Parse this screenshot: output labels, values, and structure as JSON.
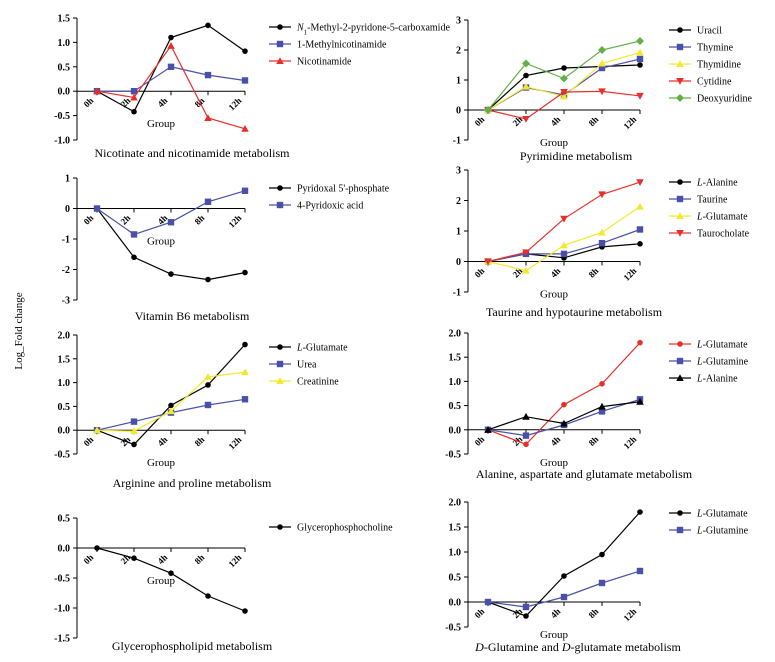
{
  "figure": {
    "ylabel": "Log_Fold change"
  },
  "chart_data": [
    {
      "type": "line",
      "title": "Nicotinate and nicotinamide metabolism",
      "xlabel": "Group",
      "ylabel": "Log_Fold change",
      "categories": [
        "0h",
        "2h",
        "4h",
        "8h",
        "12h"
      ],
      "ylim": [
        -1.0,
        1.5
      ],
      "yticks": [
        "-1.0",
        "-0.5",
        "0.0",
        "0.5",
        "1.0",
        "1.5"
      ],
      "series": [
        {
          "name": "N1-Methyl-2-pyridone-5-carboxamide",
          "color": "#000000",
          "marker": "circle",
          "values": [
            0,
            -0.42,
            1.1,
            1.35,
            0.82
          ]
        },
        {
          "name": "1-Methylnicotinamide",
          "color": "#4a50a8",
          "marker": "square",
          "values": [
            0,
            0,
            0.5,
            0.33,
            0.22
          ]
        },
        {
          "name": "Nicotinamide",
          "color": "#e8302a",
          "marker": "triangle-up",
          "values": [
            0,
            -0.13,
            0.93,
            -0.55,
            -0.77
          ]
        }
      ]
    },
    {
      "type": "line",
      "title": "Pyrimidine metabolism",
      "xlabel": "Group",
      "ylabel": "Log_Fold change",
      "categories": [
        "0h",
        "2h",
        "4h",
        "8h",
        "12h"
      ],
      "ylim": [
        -1,
        3
      ],
      "yticks": [
        "-1",
        "0",
        "1",
        "2",
        "3"
      ],
      "series": [
        {
          "name": "Uracil",
          "color": "#000000",
          "marker": "circle",
          "values": [
            0,
            1.15,
            1.4,
            1.45,
            1.5
          ]
        },
        {
          "name": "Thymine",
          "color": "#4a50a8",
          "marker": "square",
          "values": [
            0,
            0.75,
            0.5,
            1.4,
            1.7
          ]
        },
        {
          "name": "Thymidine",
          "color": "#f2e92a",
          "marker": "triangle-up",
          "values": [
            0,
            0.78,
            0.45,
            1.55,
            1.92
          ]
        },
        {
          "name": "Cytidine",
          "color": "#e8302a",
          "marker": "triangle-down",
          "values": [
            0,
            -0.3,
            0.6,
            0.62,
            0.47
          ]
        },
        {
          "name": "Deoxyuridine",
          "color": "#62b046",
          "marker": "diamond",
          "values": [
            0,
            1.55,
            1.05,
            2.0,
            2.3
          ]
        }
      ]
    },
    {
      "type": "line",
      "title": "Vitamin B6 metabolism",
      "xlabel": "Group",
      "ylabel": "Log_Fold change",
      "categories": [
        "0h",
        "2h",
        "4h",
        "8h",
        "12h"
      ],
      "ylim": [
        -3,
        1
      ],
      "yticks": [
        "-3",
        "-2",
        "-1",
        "0",
        "1"
      ],
      "series": [
        {
          "name": "Pyridoxal 5'-phosphate",
          "color": "#000000",
          "marker": "circle",
          "values": [
            0,
            -1.6,
            -2.15,
            -2.33,
            -2.1
          ]
        },
        {
          "name": "4-Pyridoxic acid",
          "color": "#4a50a8",
          "marker": "square",
          "values": [
            0,
            -0.85,
            -0.45,
            0.22,
            0.58
          ]
        }
      ]
    },
    {
      "type": "line",
      "title": "Taurine and hypotaurine metabolism",
      "xlabel": "Group",
      "ylabel": "Log_Fold change",
      "categories": [
        "0h",
        "2h",
        "4h",
        "8h",
        "12h"
      ],
      "ylim": [
        -1,
        3
      ],
      "yticks": [
        "-1",
        "0",
        "1",
        "2",
        "3"
      ],
      "series": [
        {
          "name": "L-Alanine",
          "color": "#000000",
          "marker": "circle",
          "values": [
            0,
            0.25,
            0.12,
            0.48,
            0.58
          ]
        },
        {
          "name": "Taurine",
          "color": "#4a50a8",
          "marker": "square",
          "values": [
            0,
            0.25,
            0.25,
            0.6,
            1.05
          ]
        },
        {
          "name": "L-Glutamate",
          "color": "#f2e92a",
          "marker": "triangle-up",
          "values": [
            0,
            -0.3,
            0.53,
            0.95,
            1.8
          ]
        },
        {
          "name": "Taurocholate",
          "color": "#e8302a",
          "marker": "triangle-down",
          "values": [
            0,
            0.3,
            1.4,
            2.2,
            2.6
          ]
        }
      ]
    },
    {
      "type": "line",
      "title": "Arginine and proline metabolism",
      "xlabel": "Group",
      "ylabel": "Log_Fold change",
      "categories": [
        "0h",
        "2h",
        "4h",
        "8h",
        "12h"
      ],
      "ylim": [
        -0.5,
        2.0
      ],
      "yticks": [
        "-0.5",
        "0.0",
        "0.5",
        "1.0",
        "1.5",
        "2.0"
      ],
      "series": [
        {
          "name": "L-Glutamate",
          "color": "#000000",
          "marker": "circle",
          "values": [
            0,
            -0.3,
            0.52,
            0.95,
            1.8
          ]
        },
        {
          "name": "Urea",
          "color": "#4a50a8",
          "marker": "square",
          "values": [
            0,
            0.18,
            0.37,
            0.53,
            0.65
          ]
        },
        {
          "name": "Creatinine",
          "color": "#f2e92a",
          "marker": "triangle-up",
          "values": [
            0,
            -0.02,
            0.4,
            1.12,
            1.22
          ]
        }
      ]
    },
    {
      "type": "line",
      "title": "Alanine, aspartate and glutamate metabolism",
      "xlabel": "Group",
      "ylabel": "Log_Fold change",
      "categories": [
        "0h",
        "2h",
        "4h",
        "8h",
        "12h"
      ],
      "ylim": [
        -0.5,
        2.0
      ],
      "yticks": [
        "-0.5",
        "0.0",
        "0.5",
        "1.0",
        "1.5",
        "2.0"
      ],
      "series": [
        {
          "name": "L-Glutamate",
          "color": "#e8302a",
          "marker": "circle",
          "values": [
            0,
            -0.3,
            0.52,
            0.95,
            1.8
          ]
        },
        {
          "name": "L-Glutamine",
          "color": "#4a50a8",
          "marker": "square",
          "values": [
            0,
            -0.12,
            0.1,
            0.38,
            0.63
          ]
        },
        {
          "name": "L-Alanine",
          "color": "#000000",
          "marker": "triangle-up",
          "values": [
            0,
            0.27,
            0.13,
            0.48,
            0.58
          ]
        }
      ]
    },
    {
      "type": "line",
      "title": "Glycerophospholipid metabolism",
      "xlabel": "Group",
      "ylabel": "Log_Fold change",
      "categories": [
        "0h",
        "2h",
        "4h",
        "8h",
        "12h"
      ],
      "ylim": [
        -1.5,
        0.5
      ],
      "yticks": [
        "-1.5",
        "-1.0",
        "-0.5",
        "0.0",
        "0.5"
      ],
      "series": [
        {
          "name": "Glycerophosphocholine",
          "color": "#000000",
          "marker": "circle",
          "values": [
            0,
            -0.17,
            -0.42,
            -0.8,
            -1.05
          ]
        }
      ]
    },
    {
      "type": "line",
      "title": "D-Glutamine and D-glutamate metabolism",
      "xlabel": "Group",
      "ylabel": "Log_Fold change",
      "categories": [
        "0h",
        "2h",
        "4h",
        "8h",
        "12h"
      ],
      "ylim": [
        -0.5,
        2.0
      ],
      "yticks": [
        "-0.5",
        "0.0",
        "0.5",
        "1.0",
        "1.5",
        "2.0"
      ],
      "series": [
        {
          "name": "L-Glutamate",
          "color": "#000000",
          "marker": "circle",
          "values": [
            0,
            -0.28,
            0.52,
            0.95,
            1.8
          ]
        },
        {
          "name": "L-Glutamine",
          "color": "#4a50a8",
          "marker": "square",
          "values": [
            0,
            -0.1,
            0.1,
            0.38,
            0.62
          ]
        }
      ]
    }
  ]
}
